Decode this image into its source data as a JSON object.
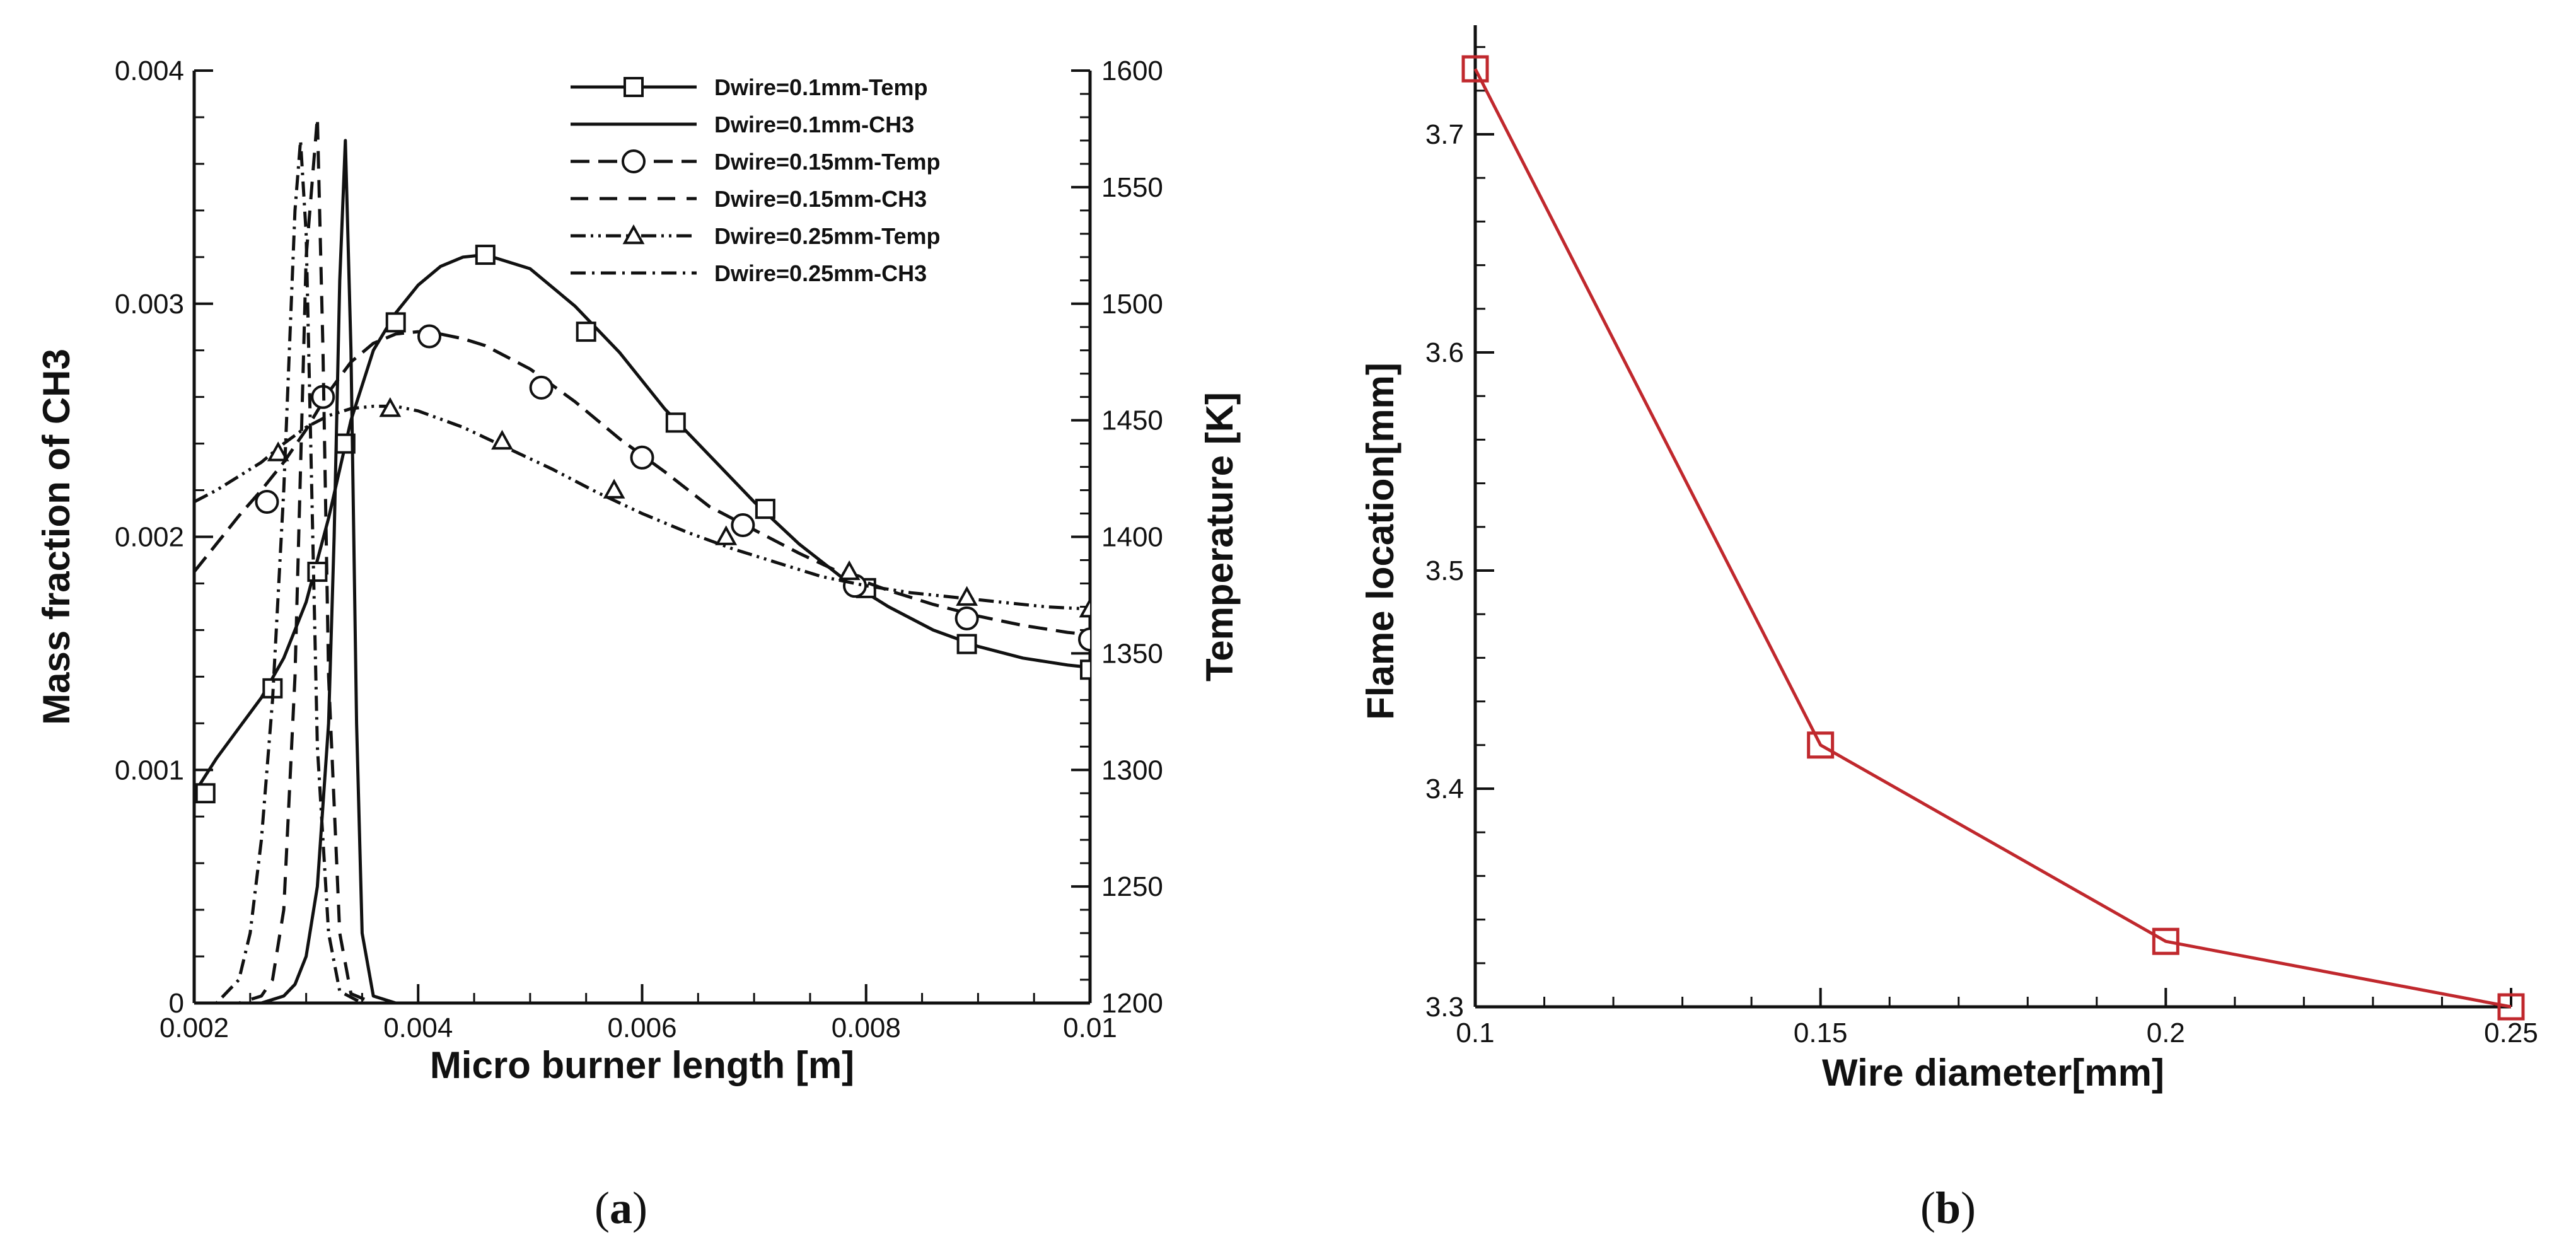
{
  "panel_labels": {
    "a": {
      "open": "(",
      "letter": "a",
      "close": ")"
    },
    "b": {
      "open": "(",
      "letter": "b",
      "close": ")"
    }
  },
  "chart_data": [
    {
      "id": "a",
      "type": "line",
      "xlabel": "Micro burner length [m]",
      "ylabel": "Mass fraction of CH3",
      "y2label": "Temperature [K]",
      "xlim": [
        0.002,
        0.01
      ],
      "ylim": [
        0,
        0.004
      ],
      "y2lim": [
        1200,
        1600
      ],
      "x_ticks": [
        "0.002",
        "0.004",
        "0.006",
        "0.008",
        "0.01"
      ],
      "y_ticks": [
        "0",
        "0.001",
        "0.002",
        "0.003",
        "0.004"
      ],
      "y2_ticks": [
        "1200",
        "1250",
        "1300",
        "1350",
        "1400",
        "1450",
        "1500",
        "1550",
        "1600"
      ],
      "grid": false,
      "legend_position": "top-right",
      "series": [
        {
          "name": "Dwire=0.1mm-Temp",
          "axis": "right",
          "dash": "solid",
          "marker": "square",
          "x": [
            0.002,
            0.0022,
            0.0024,
            0.0026,
            0.0028,
            0.003,
            0.0032,
            0.0034,
            0.0036,
            0.0038,
            0.004,
            0.0042,
            0.0044,
            0.0046,
            0.005,
            0.0054,
            0.0058,
            0.0062,
            0.0066,
            0.007,
            0.0074,
            0.0078,
            0.0082,
            0.0086,
            0.009,
            0.0094,
            0.0098,
            0.01
          ],
          "y": [
            1290,
            1305,
            1318,
            1331,
            1348,
            1372,
            1408,
            1450,
            1480,
            1496,
            1508,
            1516,
            1520,
            1521,
            1515,
            1499,
            1479,
            1455,
            1435,
            1415,
            1397,
            1382,
            1370,
            1360,
            1353,
            1348,
            1345,
            1344
          ],
          "marker_x": [
            0.0021,
            0.0027,
            0.0031,
            0.00335,
            0.0038,
            0.0046,
            0.0055,
            0.0063,
            0.0071,
            0.008,
            0.0089,
            0.01
          ],
          "marker_y": [
            1290,
            1335,
            1385,
            1440,
            1492,
            1521,
            1488,
            1449,
            1412,
            1378,
            1354,
            1343
          ]
        },
        {
          "name": "Dwire=0.1mm-CH3",
          "axis": "left",
          "dash": "solid",
          "marker": "none",
          "x": [
            0.002,
            0.0026,
            0.0028,
            0.0029,
            0.003,
            0.0031,
            0.0032,
            0.00325,
            0.0033,
            0.00335,
            0.0034,
            0.00345,
            0.0035,
            0.0036,
            0.0038,
            0.004,
            0.01
          ],
          "y": [
            0,
            0,
            3e-05,
            8e-05,
            0.0002,
            0.0005,
            0.0012,
            0.002,
            0.0031,
            0.0037,
            0.0028,
            0.0012,
            0.0003,
            3e-05,
            0,
            0,
            0
          ]
        },
        {
          "name": "Dwire=0.15mm-Temp",
          "axis": "right",
          "dash": "longdash",
          "marker": "circle",
          "x": [
            0.002,
            0.0022,
            0.0024,
            0.0026,
            0.0028,
            0.003,
            0.0032,
            0.0034,
            0.0036,
            0.0038,
            0.004,
            0.0042,
            0.0044,
            0.0046,
            0.005,
            0.0054,
            0.0058,
            0.0062,
            0.0066,
            0.007,
            0.0074,
            0.0078,
            0.0082,
            0.0086,
            0.009,
            0.0094,
            0.0098,
            0.01
          ],
          "y": [
            1385,
            1397,
            1409,
            1420,
            1432,
            1446,
            1462,
            1475,
            1483,
            1487,
            1488,
            1487,
            1485,
            1482,
            1472,
            1458,
            1442,
            1428,
            1413,
            1403,
            1393,
            1384,
            1377,
            1371,
            1366,
            1362,
            1359,
            1358
          ],
          "marker_x": [
            0.00265,
            0.00315,
            0.0041,
            0.0051,
            0.006,
            0.0069,
            0.0079,
            0.0089,
            0.01
          ],
          "marker_y": [
            1415,
            1460,
            1486,
            1464,
            1434,
            1405,
            1379,
            1365,
            1356
          ]
        },
        {
          "name": "Dwire=0.15mm-CH3",
          "axis": "left",
          "dash": "dash",
          "marker": "none",
          "x": [
            0.002,
            0.0024,
            0.0026,
            0.0027,
            0.0028,
            0.0029,
            0.003,
            0.0031,
            0.00315,
            0.0032,
            0.0033,
            0.0034,
            0.0036,
            0.01
          ],
          "y": [
            0,
            0,
            3e-05,
            0.0001,
            0.0004,
            0.0014,
            0.0032,
            0.0038,
            0.0028,
            0.0014,
            0.0003,
            4e-05,
            0,
            0
          ]
        },
        {
          "name": "Dwire=0.25mm-Temp",
          "axis": "right",
          "dash": "dashdotdot",
          "marker": "triangle",
          "x": [
            0.002,
            0.0022,
            0.0024,
            0.0026,
            0.0028,
            0.003,
            0.0032,
            0.0034,
            0.0036,
            0.0038,
            0.004,
            0.0044,
            0.0048,
            0.0052,
            0.0056,
            0.006,
            0.0064,
            0.0068,
            0.0072,
            0.0076,
            0.008,
            0.0084,
            0.0088,
            0.0092,
            0.0096,
            0.01
          ],
          "y": [
            1415,
            1420,
            1426,
            1432,
            1440,
            1447,
            1452,
            1455,
            1456,
            1456,
            1454,
            1447,
            1438,
            1429,
            1419,
            1410,
            1402,
            1395,
            1389,
            1383,
            1379,
            1376,
            1374,
            1372,
            1370,
            1369
          ],
          "marker_x": [
            0.00275,
            0.00375,
            0.00475,
            0.00575,
            0.00675,
            0.00785,
            0.0089,
            0.01
          ],
          "marker_y": [
            1436,
            1455,
            1441,
            1420,
            1400,
            1385,
            1374,
            1369
          ]
        },
        {
          "name": "Dwire=0.25mm-CH3",
          "axis": "left",
          "dash": "dashdot",
          "marker": "none",
          "x": [
            0.002,
            0.0022,
            0.0024,
            0.0025,
            0.0026,
            0.0027,
            0.0028,
            0.00285,
            0.0029,
            0.00295,
            0.003,
            0.00305,
            0.0031,
            0.0032,
            0.0033,
            0.0035,
            0.01
          ],
          "y": [
            0,
            0,
            0.0001,
            0.0003,
            0.0007,
            0.0013,
            0.0022,
            0.0028,
            0.0034,
            0.0037,
            0.0033,
            0.0022,
            0.0011,
            0.0003,
            5e-05,
            0,
            0
          ]
        }
      ]
    },
    {
      "id": "b",
      "type": "line",
      "xlabel": "Wire diameter[mm]",
      "ylabel": "Flame location[mm]",
      "xlim": [
        0.1,
        0.25
      ],
      "ylim": [
        3.3,
        3.75
      ],
      "x_ticks": [
        "0.1",
        "0.15",
        "0.2",
        "0.25"
      ],
      "y_ticks": [
        "3.3",
        "3.4",
        "3.5",
        "3.6",
        "3.7"
      ],
      "grid": false,
      "color": "#c0282d",
      "marker": "square",
      "x": [
        0.1,
        0.15,
        0.2,
        0.25
      ],
      "values": [
        3.73,
        3.42,
        3.33,
        3.3
      ]
    }
  ]
}
